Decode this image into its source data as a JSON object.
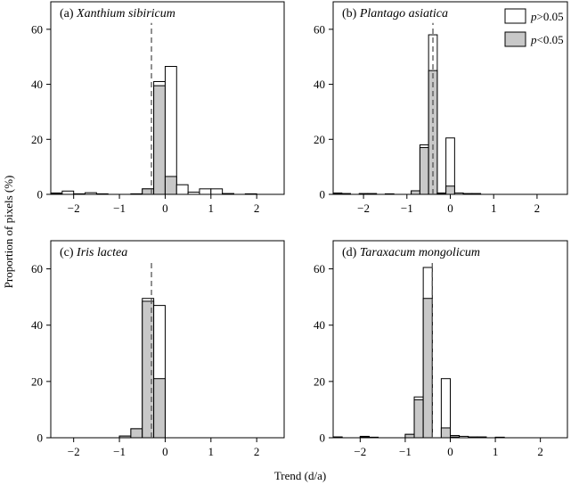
{
  "figure": {
    "ylabel": "Proportion of pixels (%)",
    "xlabel": "Trend (d/a)"
  },
  "legend": {
    "items": [
      {
        "prefix": "p",
        "suffix": ">0.05",
        "color": "#ffffff"
      },
      {
        "prefix": "p",
        "suffix": "<0.05",
        "color": "#c8c8c8"
      }
    ]
  },
  "chart_data": [
    {
      "type": "bar",
      "label": "(a)",
      "species": "Xanthium sibiricum",
      "xlim": [
        -2.5,
        2.6
      ],
      "ylim": [
        0,
        70
      ],
      "xticks": [
        -2,
        -1,
        0,
        1,
        2
      ],
      "yticks": [
        0,
        20,
        40,
        60
      ],
      "bin_width": 0.25,
      "median": -0.3,
      "bins": [
        {
          "x": -2.5,
          "total": 0.5,
          "sig": 0.2
        },
        {
          "x": -2.25,
          "total": 1.2,
          "sig": 0
        },
        {
          "x": -2.0,
          "total": 0.2,
          "sig": 0
        },
        {
          "x": -1.75,
          "total": 0.6,
          "sig": 0
        },
        {
          "x": -1.5,
          "total": 0.2,
          "sig": 0
        },
        {
          "x": -0.75,
          "total": 0.2,
          "sig": 0.1
        },
        {
          "x": -0.5,
          "total": 2.0,
          "sig": 2.0
        },
        {
          "x": -0.25,
          "total": 41.0,
          "sig": 39.5
        },
        {
          "x": 0.0,
          "total": 46.5,
          "sig": 6.5
        },
        {
          "x": 0.25,
          "total": 3.5,
          "sig": 0
        },
        {
          "x": 0.5,
          "total": 0.8,
          "sig": 0
        },
        {
          "x": 0.75,
          "total": 2.0,
          "sig": 0
        },
        {
          "x": 1.0,
          "total": 2.0,
          "sig": 0
        },
        {
          "x": 1.25,
          "total": 0.3,
          "sig": 0
        },
        {
          "x": 1.75,
          "total": 0.2,
          "sig": 0
        }
      ]
    },
    {
      "type": "bar",
      "label": "(b)",
      "species": "Plantago asiatica",
      "xlim": [
        -2.7,
        2.7
      ],
      "ylim": [
        0,
        70
      ],
      "xticks": [
        -2,
        -1,
        0,
        1,
        2
      ],
      "yticks": [
        0,
        20,
        40,
        60
      ],
      "bin_width": 0.2,
      "median": -0.4,
      "bins": [
        {
          "x": -2.7,
          "total": 0.5,
          "sig": 0.2
        },
        {
          "x": -2.5,
          "total": 0.3,
          "sig": 0
        },
        {
          "x": -2.1,
          "total": 0.3,
          "sig": 0
        },
        {
          "x": -1.9,
          "total": 0.3,
          "sig": 0
        },
        {
          "x": -1.5,
          "total": 0.2,
          "sig": 0
        },
        {
          "x": -0.9,
          "total": 1.3,
          "sig": 1.3
        },
        {
          "x": -0.7,
          "total": 18.0,
          "sig": 17.0
        },
        {
          "x": -0.5,
          "total": 58.0,
          "sig": 45.0
        },
        {
          "x": -0.3,
          "total": 0.5,
          "sig": 0.3
        },
        {
          "x": -0.1,
          "total": 20.5,
          "sig": 3.0
        },
        {
          "x": 0.1,
          "total": 0.5,
          "sig": 0
        },
        {
          "x": 0.3,
          "total": 0.3,
          "sig": 0
        },
        {
          "x": 0.5,
          "total": 0.3,
          "sig": 0
        }
      ]
    },
    {
      "type": "bar",
      "label": "(c)",
      "species": "Iris lactea",
      "xlim": [
        -2.5,
        2.6
      ],
      "ylim": [
        0,
        70
      ],
      "xticks": [
        -2,
        -1,
        0,
        1,
        2
      ],
      "yticks": [
        0,
        20,
        40,
        60
      ],
      "bin_width": 0.25,
      "median": -0.3,
      "bins": [
        {
          "x": -1.0,
          "total": 0.6,
          "sig": 0.6
        },
        {
          "x": -0.75,
          "total": 3.2,
          "sig": 3.2
        },
        {
          "x": -0.5,
          "total": 49.5,
          "sig": 48.5
        },
        {
          "x": -0.25,
          "total": 47.0,
          "sig": 21.0
        }
      ]
    },
    {
      "type": "bar",
      "label": "(d)",
      "species": "Taraxacum mongolicum",
      "xlim": [
        -2.6,
        2.6
      ],
      "ylim": [
        0,
        70
      ],
      "xticks": [
        -2,
        -1,
        0,
        1,
        2
      ],
      "yticks": [
        0,
        20,
        40,
        60
      ],
      "bin_width": 0.2,
      "median": -0.4,
      "bins": [
        {
          "x": -2.6,
          "total": 0.3,
          "sig": 0.2
        },
        {
          "x": -2.0,
          "total": 0.5,
          "sig": 0.3
        },
        {
          "x": -1.8,
          "total": 0.2,
          "sig": 0
        },
        {
          "x": -1.0,
          "total": 1.2,
          "sig": 1.2
        },
        {
          "x": -0.8,
          "total": 14.5,
          "sig": 13.5
        },
        {
          "x": -0.6,
          "total": 60.5,
          "sig": 49.5
        },
        {
          "x": -0.2,
          "total": 21.0,
          "sig": 3.5
        },
        {
          "x": 0.0,
          "total": 0.8,
          "sig": 0.3
        },
        {
          "x": 0.2,
          "total": 0.5,
          "sig": 0
        },
        {
          "x": 0.4,
          "total": 0.3,
          "sig": 0
        },
        {
          "x": 0.6,
          "total": 0.3,
          "sig": 0
        },
        {
          "x": 1.0,
          "total": 0.2,
          "sig": 0
        }
      ]
    }
  ]
}
